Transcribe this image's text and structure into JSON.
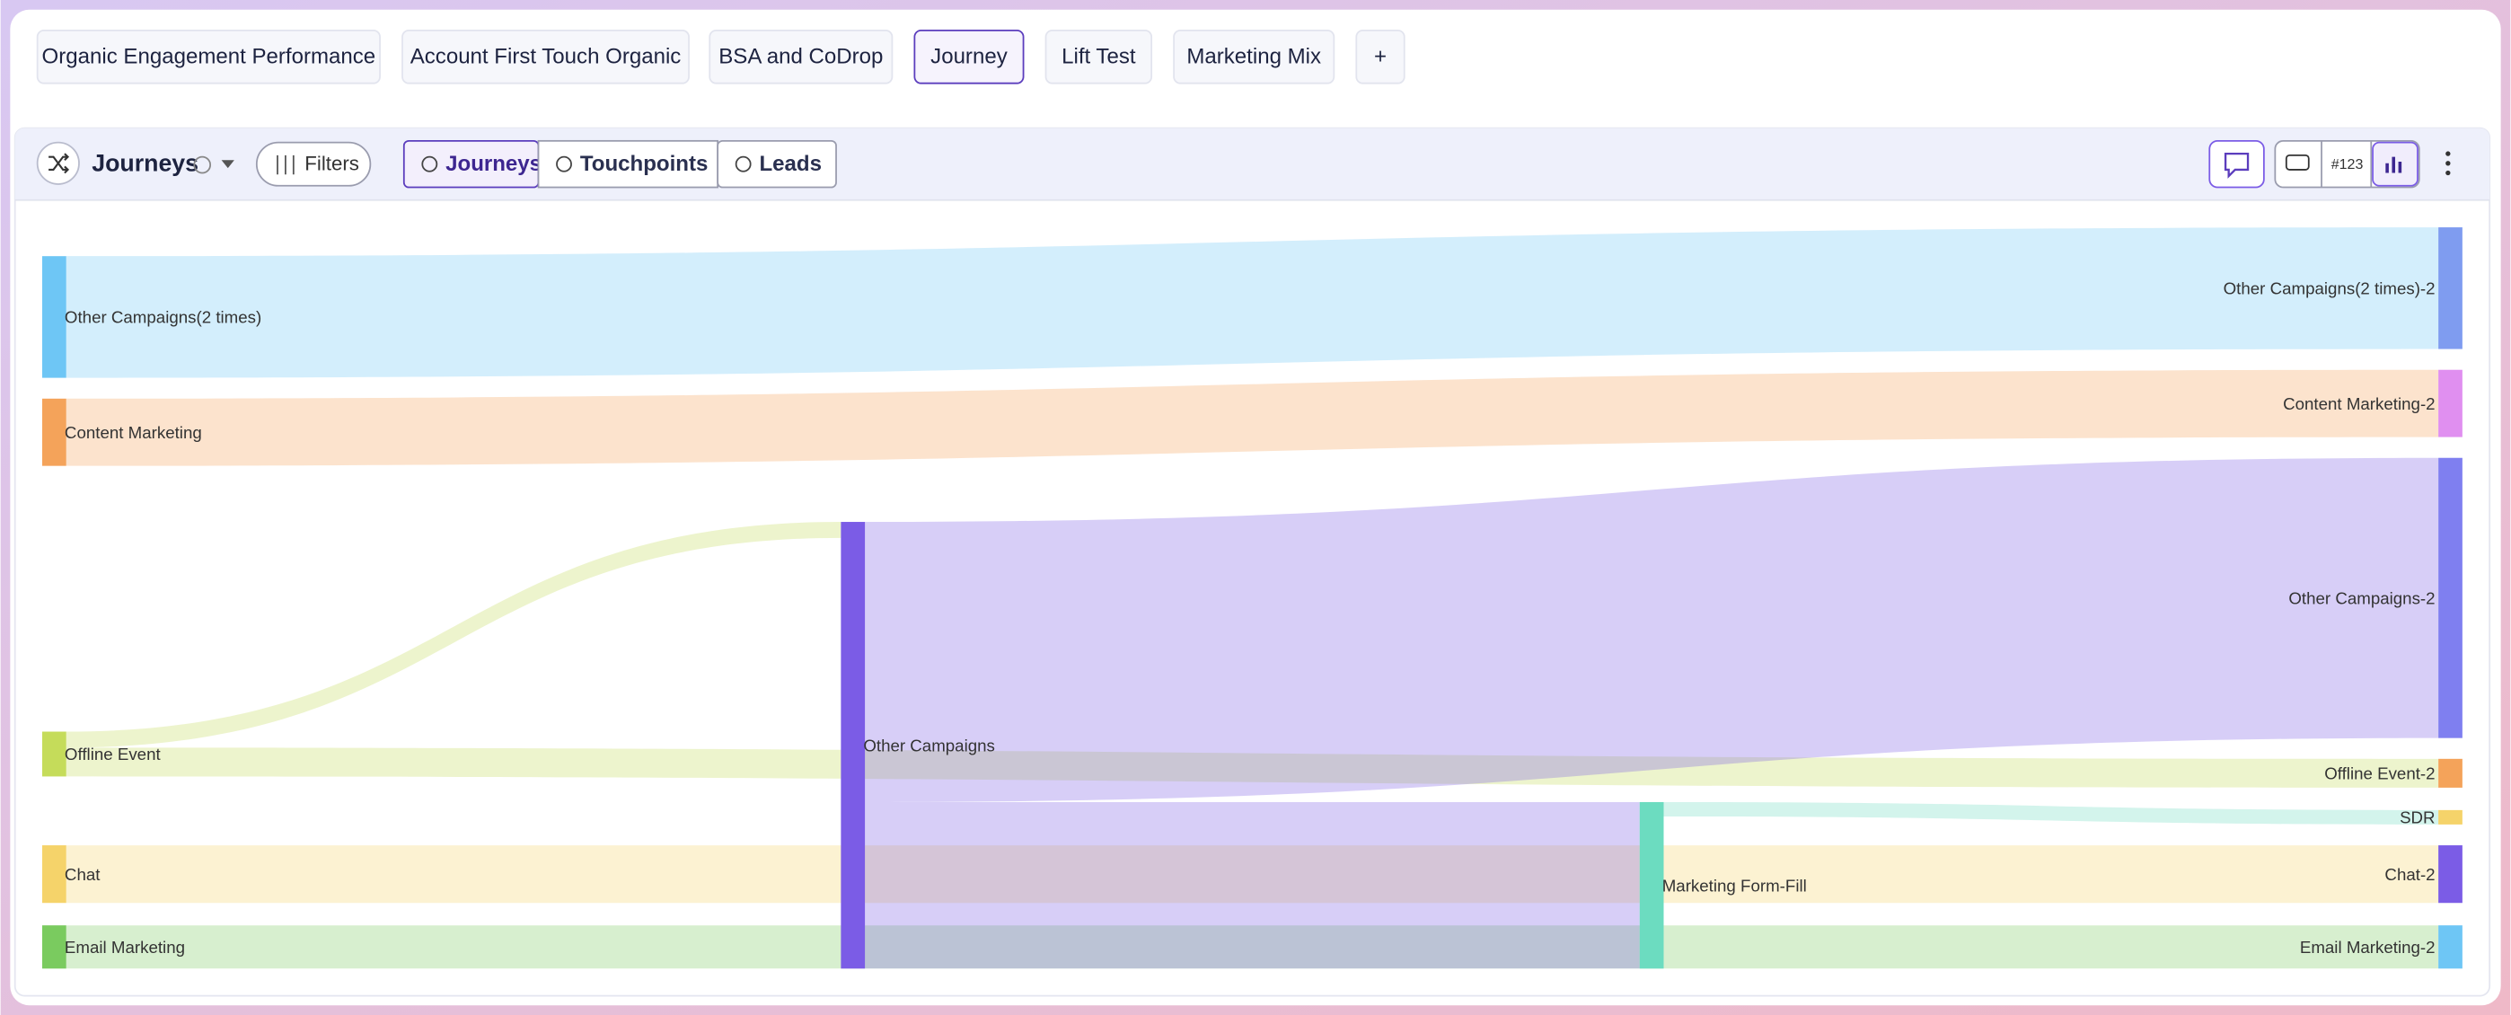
{
  "tabs": [
    "Organic Engagement Performance",
    "Account First Touch Organic",
    "BSA and CoDrop",
    "Journey",
    "Lift Test",
    "Marketing Mix"
  ],
  "add_tab": "+",
  "panel": {
    "title": "Journeys",
    "filters": "Filters",
    "views": [
      "Journeys",
      "Touchpoints",
      "Leads"
    ],
    "count_badge": "#123"
  },
  "chart_data": {
    "type": "sankey",
    "nodes": [
      {
        "name": "Other Campaigns(2 times)",
        "color": "#6ec6f5"
      },
      {
        "name": "Content Marketing",
        "color": "#f4a35a"
      },
      {
        "name": "Offline Event",
        "color": "#c5dc5a"
      },
      {
        "name": "Chat",
        "color": "#f5d36a"
      },
      {
        "name": "Email Marketing",
        "color": "#7acb5f"
      },
      {
        "name": "Other Campaigns",
        "color": "#7b5ce6"
      },
      {
        "name": "Marketing Form-Fill",
        "color": "#6cdcc0"
      },
      {
        "name": "Other Campaigns(2 times)-2",
        "color": "#7f9cf0"
      },
      {
        "name": "Content Marketing-2",
        "color": "#e08ff0"
      },
      {
        "name": "Other Campaigns-2",
        "color": "#7f7ff0"
      },
      {
        "name": "Offline Event-2",
        "color": "#f4a35a"
      },
      {
        "name": "SDR",
        "color": "#f5d36a"
      },
      {
        "name": "Chat-2",
        "color": "#7b5ce6"
      },
      {
        "name": "Email Marketing-2",
        "color": "#6ec6f5"
      }
    ],
    "links": [
      {
        "source": 0,
        "target": 7,
        "value": 76
      },
      {
        "source": 1,
        "target": 8,
        "value": 42
      },
      {
        "source": 2,
        "target": 5,
        "value": 10
      },
      {
        "source": 2,
        "target": 10,
        "value": 18
      },
      {
        "source": 3,
        "target": 12,
        "value": 36
      },
      {
        "source": 4,
        "target": 13,
        "value": 27
      },
      {
        "source": 5,
        "target": 9,
        "value": 175
      },
      {
        "source": 5,
        "target": 6,
        "value": 104
      },
      {
        "source": 6,
        "target": 11,
        "value": 9
      }
    ]
  }
}
